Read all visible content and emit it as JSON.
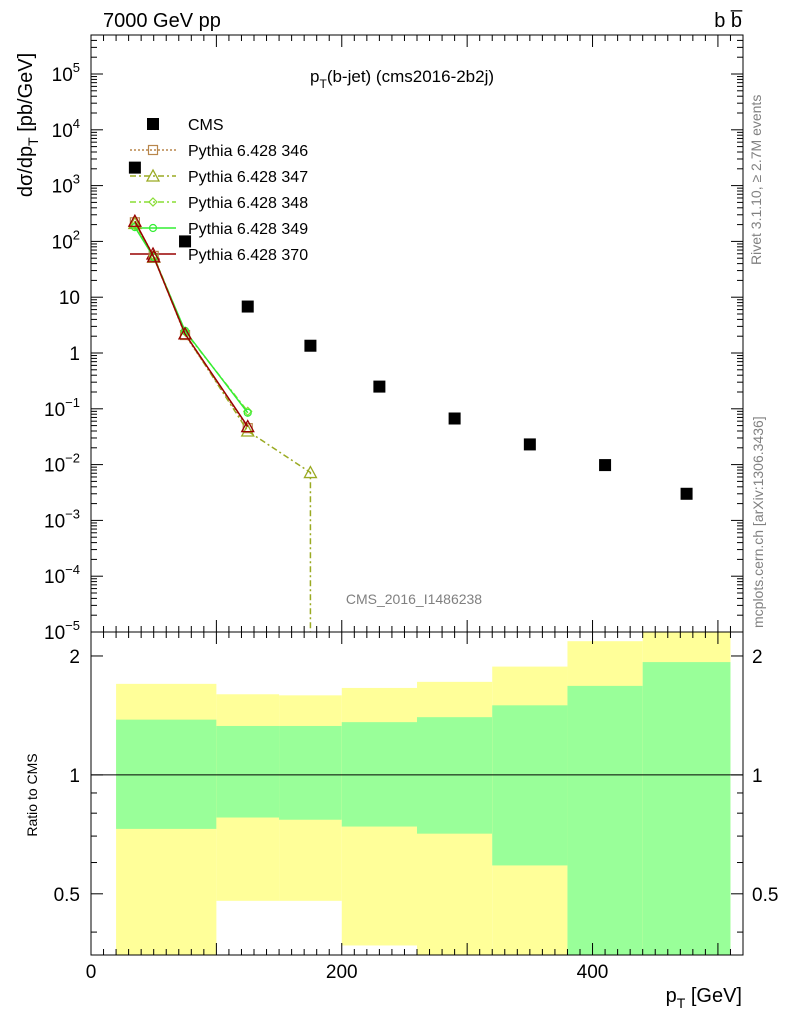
{
  "header": {
    "left": "7000 GeV pp",
    "right": "b b̅"
  },
  "plot_title": {
    "main": "p",
    "sub": "T",
    "rest": "(b-jet) (cms2016-2b2j)"
  },
  "watermark": "CMS_2016_I1486238",
  "side_labels": {
    "top": "Rivet 3.1.10, ≥ 2.7M events",
    "bottom": "mcplots.cern.ch [arXiv:1306.3436]"
  },
  "y_label": {
    "prefix": "dσ/dp",
    "sub": "T",
    "suffix": " [pb/GeV]"
  },
  "ratio_label": "Ratio to CMS",
  "x_label": {
    "main": "p",
    "sub": "T",
    "suffix": " [GeV]"
  },
  "legend": [
    {
      "label": "CMS",
      "color": "#000000",
      "marker": "square-filled",
      "dash": ""
    },
    {
      "label": "Pythia 6.428 346",
      "color": "#b8864b",
      "marker": "square-open",
      "dash": "2,2"
    },
    {
      "label": "Pythia 6.428 347",
      "color": "#9aaa22",
      "marker": "triangle-open",
      "dash": "6,3,2,3"
    },
    {
      "label": "Pythia 6.428 348",
      "color": "#88dd33",
      "marker": "diamond-open",
      "dash": "6,3,2,3"
    },
    {
      "label": "Pythia 6.428 349",
      "color": "#33ee33",
      "marker": "circle-open",
      "dash": ""
    },
    {
      "label": "Pythia 6.428 370",
      "color": "#990000",
      "marker": "triangle-open",
      "dash": ""
    }
  ],
  "chart_data": {
    "type": "scatter",
    "xlim": [
      0,
      520
    ],
    "ylim": [
      1e-05,
      500000
    ],
    "y_scale": "log",
    "x_ticks": [
      0,
      200,
      400
    ],
    "y_ticks": [
      {
        "value": 100000,
        "label": "10",
        "exp": "5"
      },
      {
        "value": 10000,
        "label": "10",
        "exp": "4"
      },
      {
        "value": 1000,
        "label": "10",
        "exp": "3"
      },
      {
        "value": 100,
        "label": "10",
        "exp": "2"
      },
      {
        "value": 10,
        "label": "10",
        "exp": ""
      },
      {
        "value": 1,
        "label": "1",
        "exp": ""
      },
      {
        "value": 0.1,
        "label": "10",
        "exp": "−1"
      },
      {
        "value": 0.01,
        "label": "10",
        "exp": "−2"
      },
      {
        "value": 0.001,
        "label": "10",
        "exp": "−3"
      },
      {
        "value": 0.0001,
        "label": "10",
        "exp": "−4"
      },
      {
        "value": 1e-05,
        "label": "10",
        "exp": "−5"
      }
    ],
    "data": {
      "name": "CMS",
      "x": [
        35,
        75,
        125,
        175,
        230,
        290,
        350,
        410,
        475
      ],
      "y": [
        2100,
        100,
        6.8,
        1.35,
        0.25,
        0.067,
        0.023,
        0.0098,
        0.003
      ]
    },
    "mc_series": [
      {
        "name": "Pythia 6.428 346",
        "x": [
          35,
          50,
          75,
          125
        ],
        "y": [
          220,
          55,
          2.1,
          0.045
        ]
      },
      {
        "name": "Pythia 6.428 347",
        "x": [
          35,
          50,
          75,
          125,
          175,
          175
        ],
        "y": [
          210,
          52,
          2.2,
          0.04,
          0.0072,
          1e-05
        ]
      },
      {
        "name": "Pythia 6.428 348",
        "x": [
          35,
          50,
          75,
          125
        ],
        "y": [
          190,
          55,
          2.4,
          0.09
        ]
      },
      {
        "name": "Pythia 6.428 349",
        "x": [
          35,
          50,
          75,
          125
        ],
        "y": [
          180,
          52,
          2.5,
          0.085
        ]
      },
      {
        "name": "Pythia 6.428 370",
        "x": [
          35,
          50,
          75,
          125
        ],
        "y": [
          230,
          53,
          2.2,
          0.048
        ]
      }
    ],
    "ratio": {
      "ylim": [
        0.35,
        2.3
      ],
      "y_scale": "log",
      "ticks": [
        0.5,
        1,
        2
      ],
      "bins": [
        {
          "x0": 20,
          "x1": 100,
          "yellow": [
            0.35,
            1.7
          ],
          "green": [
            0.73,
            1.38
          ]
        },
        {
          "x0": 100,
          "x1": 150,
          "yellow": [
            0.48,
            1.6
          ],
          "green": [
            0.78,
            1.33
          ]
        },
        {
          "x0": 150,
          "x1": 200,
          "yellow": [
            0.48,
            1.59
          ],
          "green": [
            0.77,
            1.33
          ]
        },
        {
          "x0": 200,
          "x1": 260,
          "yellow": [
            0.37,
            1.66
          ],
          "green": [
            0.74,
            1.36
          ]
        },
        {
          "x0": 260,
          "x1": 320,
          "yellow": [
            0.35,
            1.72
          ],
          "green": [
            0.71,
            1.4
          ]
        },
        {
          "x0": 320,
          "x1": 380,
          "yellow": [
            0.35,
            1.88
          ],
          "green": [
            0.59,
            1.5
          ]
        },
        {
          "x0": 380,
          "x1": 440,
          "yellow": [
            0.35,
            2.18
          ],
          "green": [
            0.35,
            1.68
          ]
        },
        {
          "x0": 440,
          "x1": 510,
          "yellow": [
            0.35,
            2.3
          ],
          "green": [
            0.35,
            1.93
          ]
        }
      ]
    }
  }
}
